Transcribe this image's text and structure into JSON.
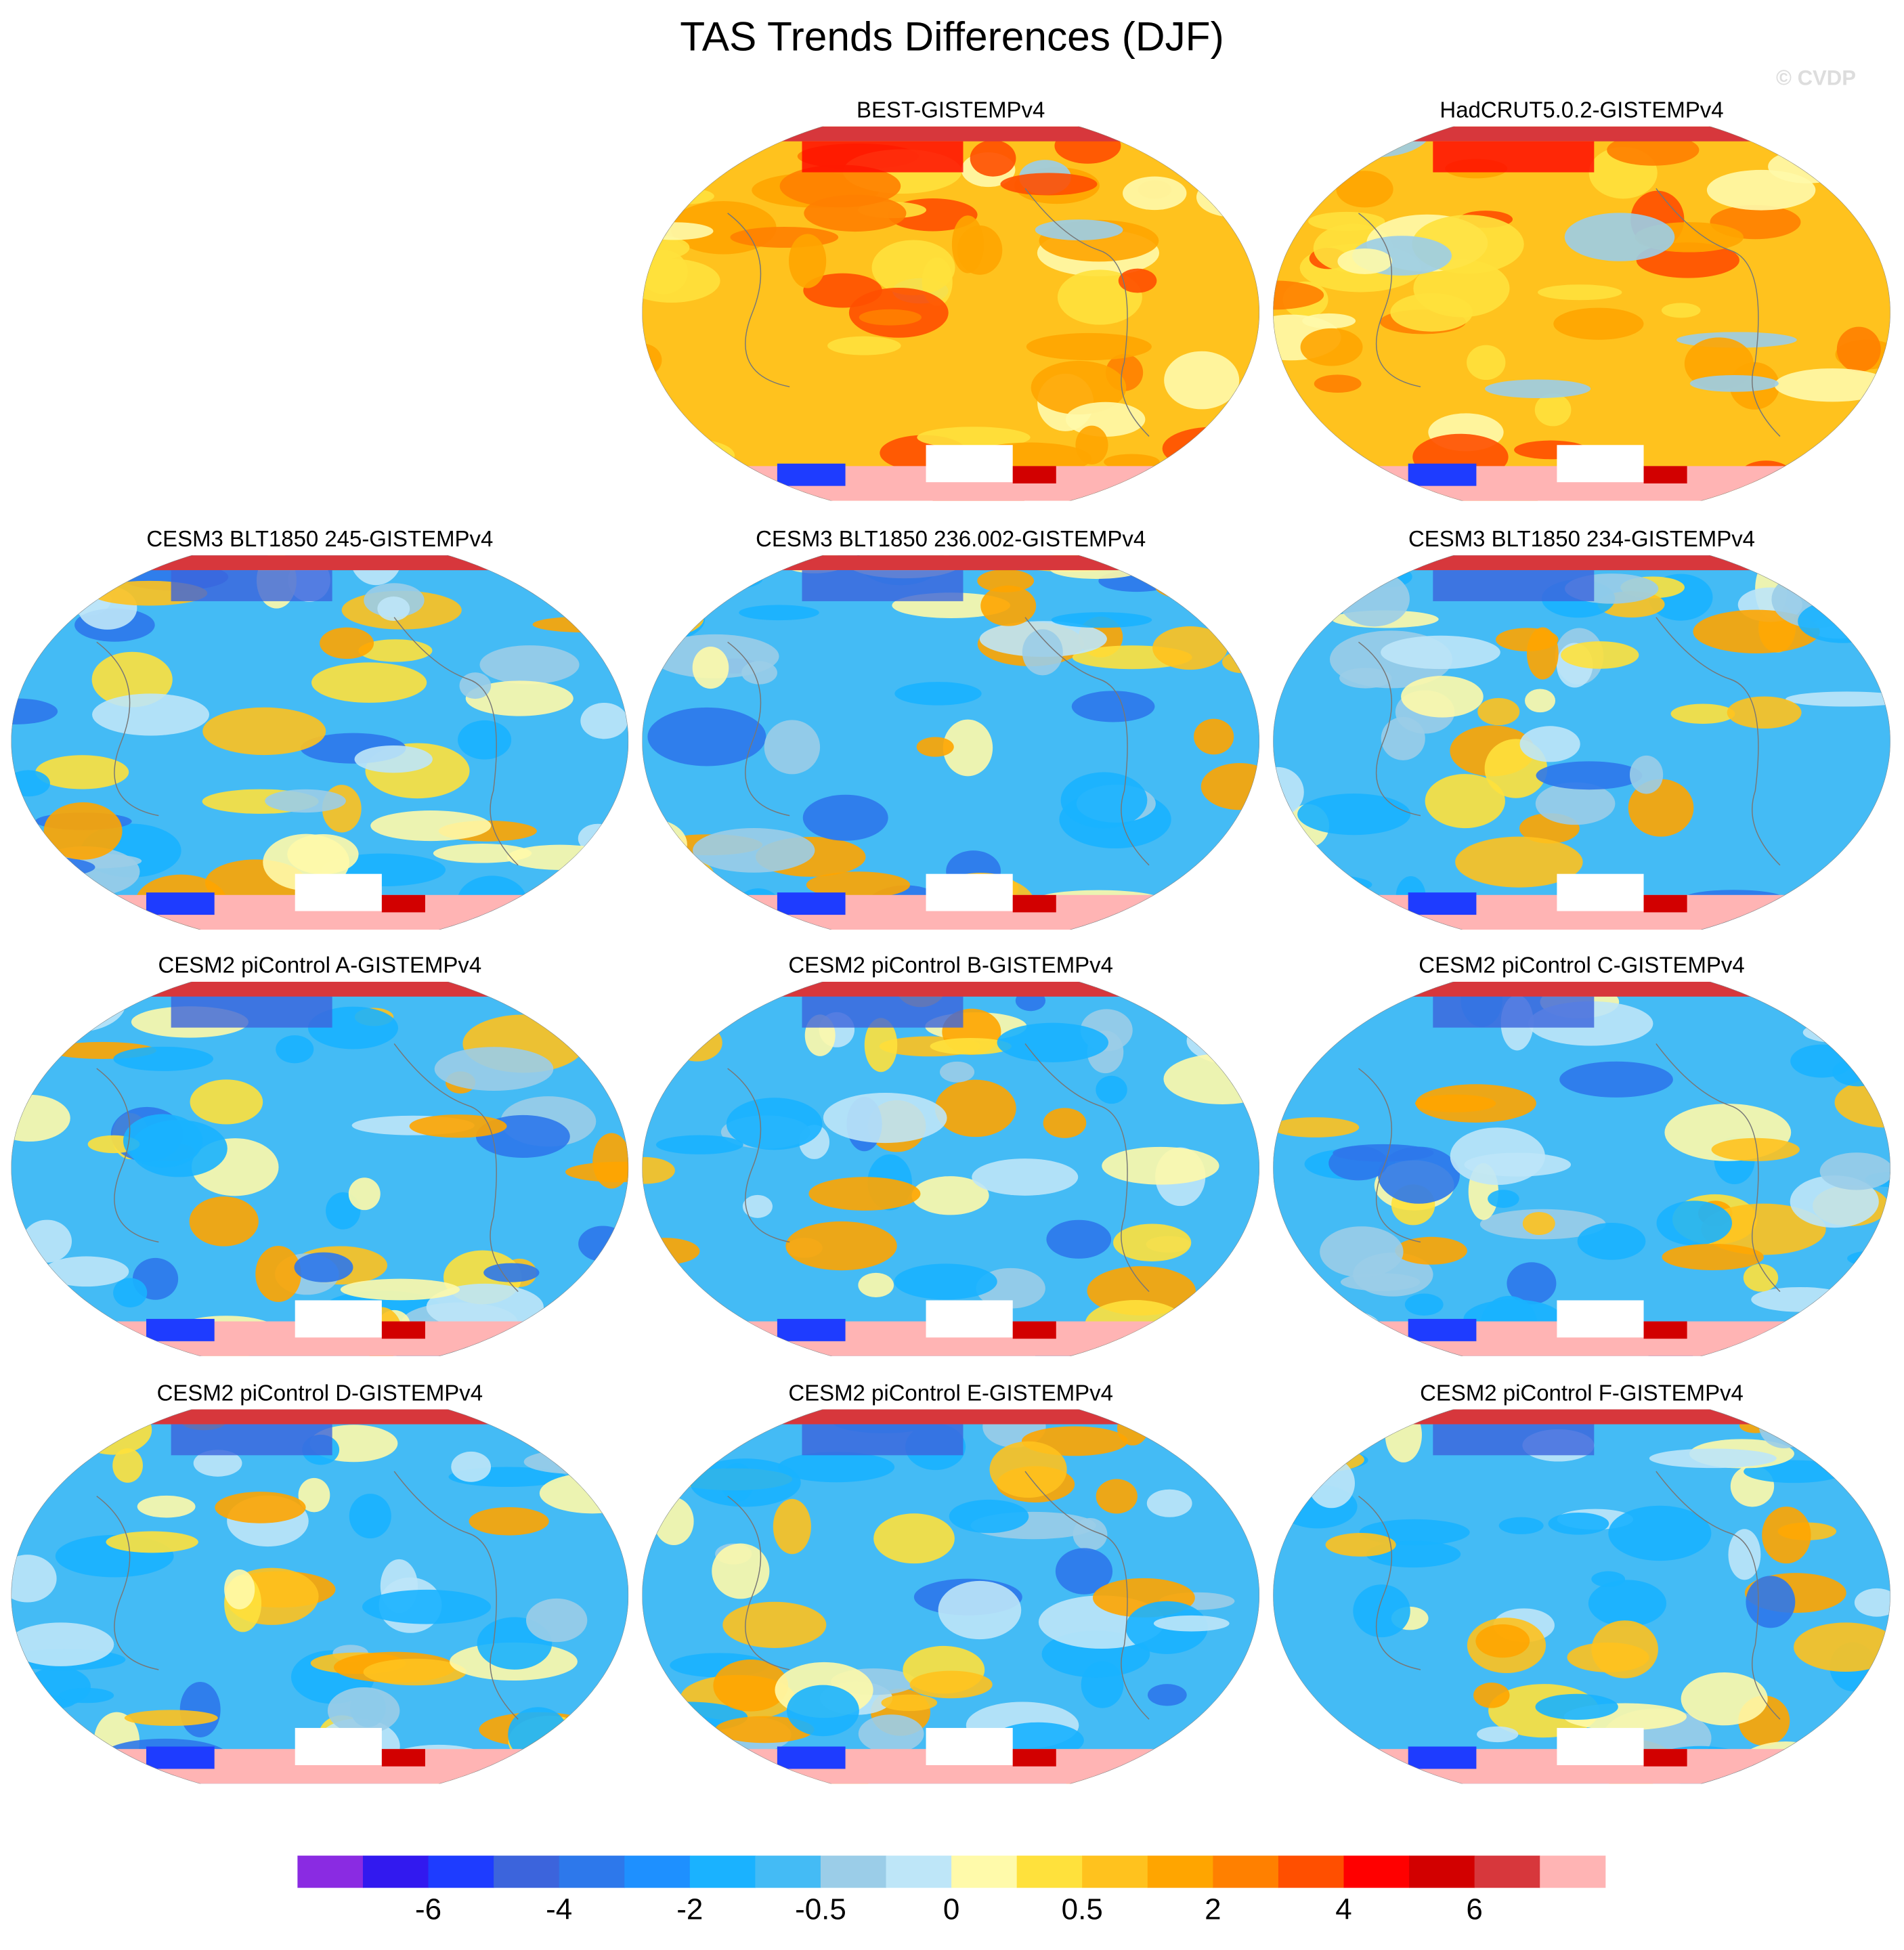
{
  "title": "TAS Trends Differences (DJF)",
  "watermark": "© CVDP",
  "panels": [
    {
      "title": "BEST-GISTEMPv4"
    },
    {
      "title": "HadCRUT5.0.2-GISTEMPv4"
    },
    {
      "title": "CESM3 BLT1850 245-GISTEMPv4"
    },
    {
      "title": "CESM3 BLT1850 236.002-GISTEMPv4"
    },
    {
      "title": "CESM3 BLT1850 234-GISTEMPv4"
    },
    {
      "title": "CESM2 piControl A-GISTEMPv4"
    },
    {
      "title": "CESM2 piControl B-GISTEMPv4"
    },
    {
      "title": "CESM2 piControl C-GISTEMPv4"
    },
    {
      "title": "CESM2 piControl D-GISTEMPv4"
    },
    {
      "title": "CESM2 piControl E-GISTEMPv4"
    },
    {
      "title": "CESM2 piControl F-GISTEMPv4"
    }
  ],
  "colorbar": {
    "colors": [
      "#8a2be2",
      "#3219ef",
      "#1e3cff",
      "#3c64dc",
      "#2d78eb",
      "#1e90ff",
      "#1ab2ff",
      "#44bbf5",
      "#9bcde8",
      "#bee6f8",
      "#fffaaa",
      "#ffe13c",
      "#ffc21e",
      "#ffa500",
      "#ff8000",
      "#ff4f00",
      "#ff0000",
      "#d20000",
      "#d7373c",
      "#ffb4b4"
    ],
    "labels": [
      "-6",
      "-4",
      "-2",
      "-0.5",
      "0",
      "0.5",
      "2",
      "4",
      "6"
    ]
  }
}
